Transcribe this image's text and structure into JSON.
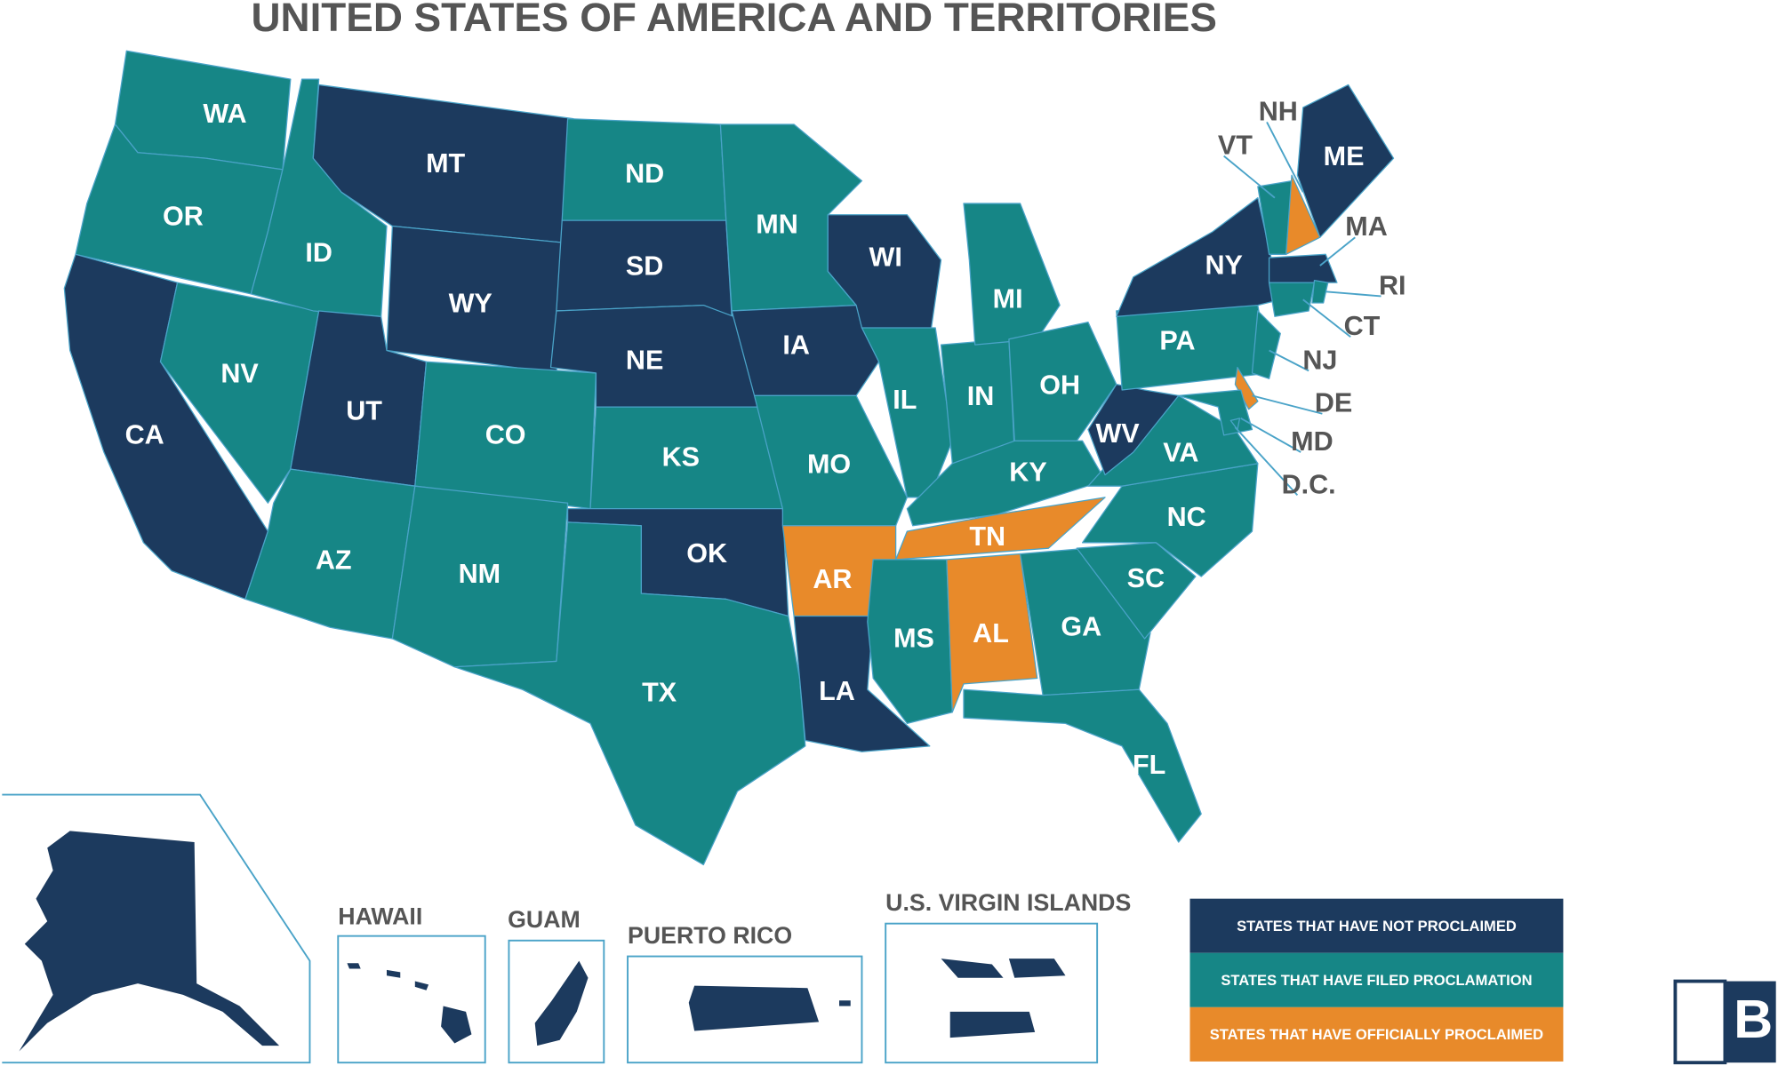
{
  "title": "UNITED STATES OF AMERICA AND TERRITORIES",
  "legend": [
    {
      "label": "STATES THAT HAVE NOT PROCLAIMED",
      "color": "#1c3a5e"
    },
    {
      "label": "STATES THAT HAVE FILED PROCLAMATION",
      "color": "#168686"
    },
    {
      "label": "STATES THAT HAVE OFFICIALLY PROCLAIMED",
      "color": "#e88a2a"
    }
  ],
  "states": [
    {
      "label": "WA",
      "status": 1
    },
    {
      "label": "OR",
      "status": 1
    },
    {
      "label": "CA",
      "status": 0
    },
    {
      "label": "NV",
      "status": 1
    },
    {
      "label": "ID",
      "status": 1
    },
    {
      "label": "MT",
      "status": 0
    },
    {
      "label": "WY",
      "status": 0
    },
    {
      "label": "UT",
      "status": 0
    },
    {
      "label": "CO",
      "status": 1
    },
    {
      "label": "AZ",
      "status": 1
    },
    {
      "label": "NM",
      "status": 1
    },
    {
      "label": "ND",
      "status": 1
    },
    {
      "label": "SD",
      "status": 0
    },
    {
      "label": "NE",
      "status": 0
    },
    {
      "label": "KS",
      "status": 1
    },
    {
      "label": "OK",
      "status": 0
    },
    {
      "label": "TX",
      "status": 1
    },
    {
      "label": "MN",
      "status": 1
    },
    {
      "label": "IA",
      "status": 0
    },
    {
      "label": "MO",
      "status": 1
    },
    {
      "label": "AR",
      "status": 2
    },
    {
      "label": "LA",
      "status": 0
    },
    {
      "label": "WI",
      "status": 0
    },
    {
      "label": "IL",
      "status": 1
    },
    {
      "label": "IN",
      "status": 1
    },
    {
      "label": "MI",
      "status": 1
    },
    {
      "label": "OH",
      "status": 1
    },
    {
      "label": "KY",
      "status": 1
    },
    {
      "label": "TN",
      "status": 2
    },
    {
      "label": "MS",
      "status": 1
    },
    {
      "label": "AL",
      "status": 2
    },
    {
      "label": "GA",
      "status": 1
    },
    {
      "label": "FL",
      "status": 1
    },
    {
      "label": "SC",
      "status": 1
    },
    {
      "label": "NC",
      "status": 1
    },
    {
      "label": "VA",
      "status": 1
    },
    {
      "label": "WV",
      "status": 0
    },
    {
      "label": "PA",
      "status": 1
    },
    {
      "label": "NY",
      "status": 0
    },
    {
      "label": "NJ",
      "status": 1
    },
    {
      "label": "DE",
      "status": 2
    },
    {
      "label": "MD",
      "status": 1
    },
    {
      "label": "VT",
      "status": 1
    },
    {
      "label": "NH",
      "status": 2
    },
    {
      "label": "ME",
      "status": 0
    },
    {
      "label": "MA",
      "status": 0
    },
    {
      "label": "CT",
      "status": 1
    },
    {
      "label": "RI",
      "status": 1
    },
    {
      "label": "D.C.",
      "status": 1
    }
  ],
  "territories": [
    {
      "label": "HAWAII",
      "status": 0
    },
    {
      "label": "GUAM",
      "status": 0
    },
    {
      "label": "PUERTO RICO",
      "status": 0
    },
    {
      "label": "U.S. VIRGIN ISLANDS",
      "status": 0
    }
  ],
  "alaska_status": 0,
  "logo": "B"
}
